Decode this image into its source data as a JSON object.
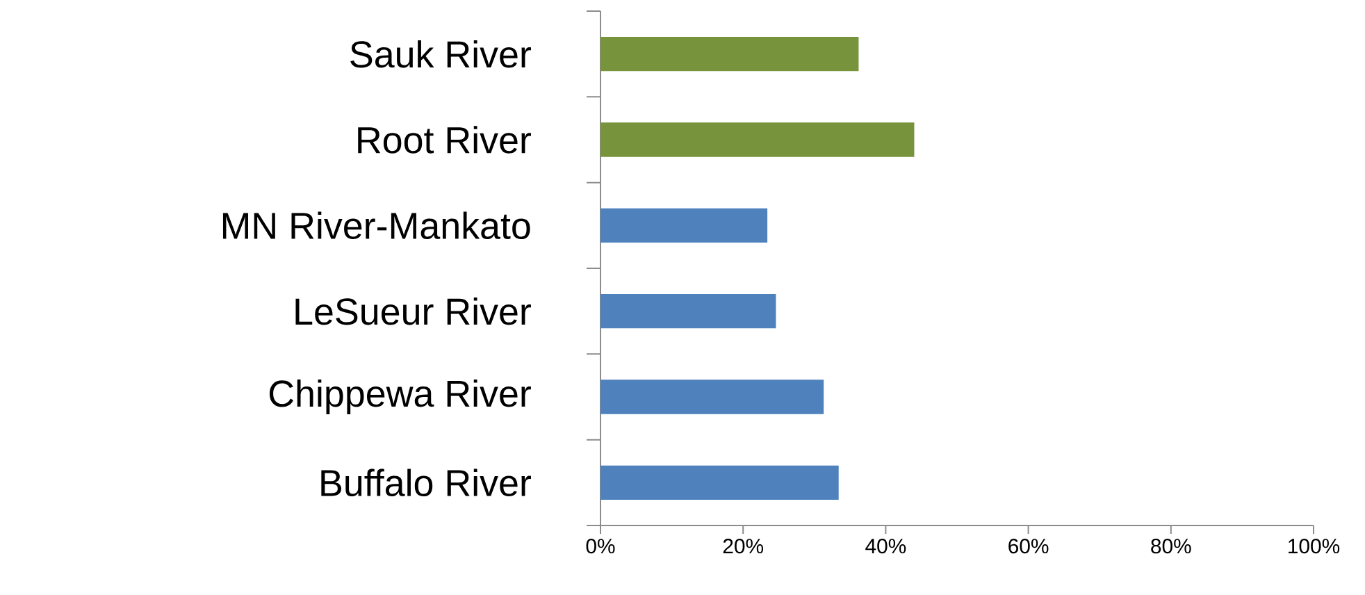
{
  "chart_data": {
    "type": "bar",
    "orientation": "horizontal",
    "categories": [
      "Sauk River",
      "Root River",
      "MN River-Mankato",
      "LeSueur River",
      "Chippewa River",
      "Buffalo River"
    ],
    "values": [
      36.2,
      44.0,
      23.4,
      24.6,
      31.3,
      33.4
    ],
    "colors": [
      "#77933c",
      "#77933c",
      "#4f81bd",
      "#4f81bd",
      "#4f81bd",
      "#4f81bd"
    ],
    "xlim": [
      0,
      100
    ],
    "xticks": [
      {
        "value": 0,
        "label": "0%"
      },
      {
        "value": 20,
        "label": "20%"
      },
      {
        "value": 40,
        "label": "40%"
      },
      {
        "value": 60,
        "label": "60%"
      },
      {
        "value": 80,
        "label": "80%"
      },
      {
        "value": 100,
        "label": "100%"
      }
    ],
    "grid": false
  }
}
